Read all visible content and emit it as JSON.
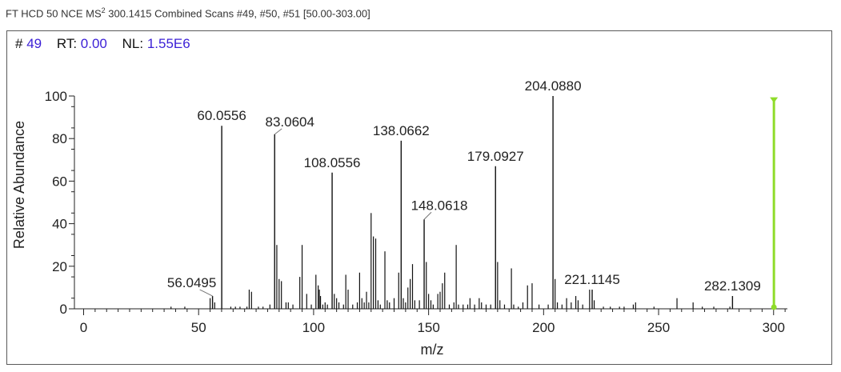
{
  "header": {
    "prefix": "FT HCD 50 NCE MS",
    "ms_order": "2",
    "suffix": " 300.1415 Combined Scans #49, #50, #51 [50.00-303.00]"
  },
  "info": {
    "scan_label": "#",
    "scan_value": "49",
    "rt_label": "RT:",
    "rt_value": "0.00",
    "nl_label": "NL:",
    "nl_value": "1.55E6"
  },
  "colors": {
    "peaks": "#111111",
    "precursor_marker": "#8fdc2a",
    "info_values": "#3b1fd6"
  },
  "chart_data": {
    "type": "bar",
    "xlabel": "m/z",
    "ylabel": "Relative Abundance",
    "xlim": [
      -4,
      306
    ],
    "ylim": [
      0,
      100
    ],
    "x_ticks": [
      0,
      50,
      100,
      150,
      200,
      250,
      300
    ],
    "y_ticks": [
      0,
      20,
      40,
      60,
      80,
      100
    ],
    "precursor": {
      "mz": 300.1415,
      "value": 99
    },
    "labeled_peaks": [
      {
        "mz": 56.0495,
        "value": 6,
        "label": "56.0495"
      },
      {
        "mz": 60.0556,
        "value": 86,
        "label": "60.0556"
      },
      {
        "mz": 83.0604,
        "value": 82,
        "label": "83.0604"
      },
      {
        "mz": 108.0556,
        "value": 64,
        "label": "108.0556"
      },
      {
        "mz": 138.0662,
        "value": 79,
        "label": "138.0662"
      },
      {
        "mz": 148.0618,
        "value": 42,
        "label": "148.0618"
      },
      {
        "mz": 179.0927,
        "value": 67,
        "label": "179.0927"
      },
      {
        "mz": 204.088,
        "value": 100,
        "label": "204.0880"
      },
      {
        "mz": 221.1145,
        "value": 9,
        "label": "221.1145"
      },
      {
        "mz": 282.1309,
        "value": 6,
        "label": "282.1309"
      }
    ],
    "peaks": [
      [
        38,
        1
      ],
      [
        44,
        1
      ],
      [
        55,
        5
      ],
      [
        57,
        3
      ],
      [
        64,
        1
      ],
      [
        66,
        1
      ],
      [
        68,
        1
      ],
      [
        71,
        1
      ],
      [
        72,
        9
      ],
      [
        73,
        8
      ],
      [
        76,
        1
      ],
      [
        78,
        1
      ],
      [
        81,
        2
      ],
      [
        84,
        30
      ],
      [
        85,
        14
      ],
      [
        86,
        13
      ],
      [
        88,
        3
      ],
      [
        89,
        3
      ],
      [
        91,
        2
      ],
      [
        94,
        15
      ],
      [
        95,
        30
      ],
      [
        97,
        7
      ],
      [
        99,
        2
      ],
      [
        101,
        16
      ],
      [
        102,
        11
      ],
      [
        102.5,
        9
      ],
      [
        103,
        6
      ],
      [
        104,
        2
      ],
      [
        105,
        3
      ],
      [
        106,
        2
      ],
      [
        109,
        7
      ],
      [
        110,
        5
      ],
      [
        111,
        3
      ],
      [
        113,
        2
      ],
      [
        114,
        16
      ],
      [
        115,
        9
      ],
      [
        117,
        2
      ],
      [
        119,
        3
      ],
      [
        120,
        17
      ],
      [
        121,
        5
      ],
      [
        122,
        3
      ],
      [
        123,
        8
      ],
      [
        124,
        3
      ],
      [
        125,
        45
      ],
      [
        126,
        34
      ],
      [
        127,
        33
      ],
      [
        128,
        4
      ],
      [
        129,
        2
      ],
      [
        131,
        27
      ],
      [
        132,
        4
      ],
      [
        133,
        3
      ],
      [
        135,
        5
      ],
      [
        137,
        17
      ],
      [
        139,
        5
      ],
      [
        140,
        3
      ],
      [
        141,
        10
      ],
      [
        142,
        14
      ],
      [
        143,
        21
      ],
      [
        144,
        4
      ],
      [
        146,
        4
      ],
      [
        149,
        22
      ],
      [
        150,
        7
      ],
      [
        151,
        4
      ],
      [
        152,
        2
      ],
      [
        154,
        7
      ],
      [
        155,
        8
      ],
      [
        156,
        12
      ],
      [
        157,
        17
      ],
      [
        159,
        2
      ],
      [
        161,
        3
      ],
      [
        162,
        30
      ],
      [
        163,
        2
      ],
      [
        165,
        2
      ],
      [
        167,
        2
      ],
      [
        168,
        5
      ],
      [
        170,
        2
      ],
      [
        172,
        5
      ],
      [
        173,
        3
      ],
      [
        175,
        2
      ],
      [
        177,
        2
      ],
      [
        180,
        22
      ],
      [
        181,
        4
      ],
      [
        183,
        2
      ],
      [
        186,
        19
      ],
      [
        187,
        2
      ],
      [
        189,
        1
      ],
      [
        191,
        3
      ],
      [
        193,
        11
      ],
      [
        195,
        12
      ],
      [
        198,
        2
      ],
      [
        202,
        2
      ],
      [
        205,
        14
      ],
      [
        206,
        3
      ],
      [
        208,
        2
      ],
      [
        210,
        5
      ],
      [
        212,
        3
      ],
      [
        214,
        6
      ],
      [
        215,
        4
      ],
      [
        217,
        2
      ],
      [
        220,
        9
      ],
      [
        222,
        4
      ],
      [
        226,
        1
      ],
      [
        229,
        1
      ],
      [
        233,
        1
      ],
      [
        235,
        1
      ],
      [
        239,
        2
      ],
      [
        240,
        3
      ],
      [
        248,
        1
      ],
      [
        258,
        5
      ],
      [
        265,
        3
      ],
      [
        269,
        1
      ],
      [
        274,
        1
      ],
      [
        281,
        1
      ]
    ]
  }
}
